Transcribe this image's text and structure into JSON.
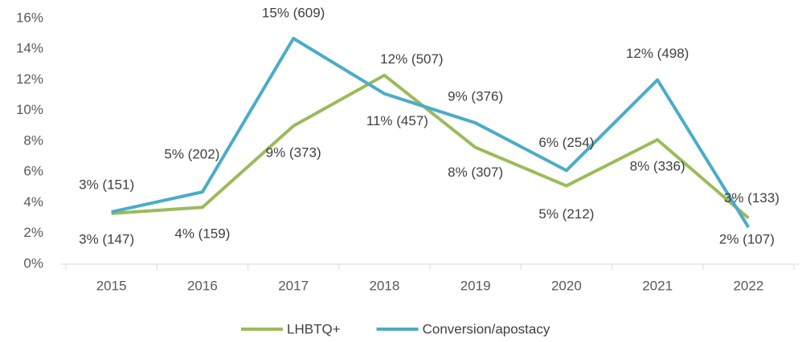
{
  "chart_data": {
    "type": "line",
    "categories": [
      "2015",
      "2016",
      "2017",
      "2018",
      "2019",
      "2020",
      "2021",
      "2022"
    ],
    "series": [
      {
        "name": "LHBTQ+",
        "color": "#9bbb59",
        "values": [
          3.3,
          3.7,
          9.0,
          12.3,
          7.6,
          5.1,
          8.1,
          3.0
        ],
        "value_labels": [
          "3% (147)",
          "4% (159)",
          "9% (373)",
          "12% (507)",
          "8% (307)",
          "5% (212)",
          "8% (336)",
          "3% (133)"
        ]
      },
      {
        "name": "Conversion/apostacy",
        "color": "#4bacc6",
        "values": [
          3.4,
          4.7,
          14.7,
          11.1,
          9.2,
          6.1,
          12.0,
          2.4
        ],
        "value_labels": [
          "3% (151)",
          "5% (202)",
          "15% (609)",
          "11% (457)",
          "9% (376)",
          "6% (254)",
          "12% (498)",
          "2% (107)"
        ]
      }
    ],
    "ylim": [
      0,
      16
    ],
    "yticks": [
      {
        "value": 0,
        "label": "0%"
      },
      {
        "value": 2,
        "label": "2%"
      },
      {
        "value": 4,
        "label": "4%"
      },
      {
        "value": 6,
        "label": "6%"
      },
      {
        "value": 8,
        "label": "8%"
      },
      {
        "value": 10,
        "label": "10%"
      },
      {
        "value": 12,
        "label": "12%"
      },
      {
        "value": 14,
        "label": "14%"
      },
      {
        "value": 16,
        "label": "16%"
      }
    ],
    "grid": false,
    "legend": "bottom"
  }
}
